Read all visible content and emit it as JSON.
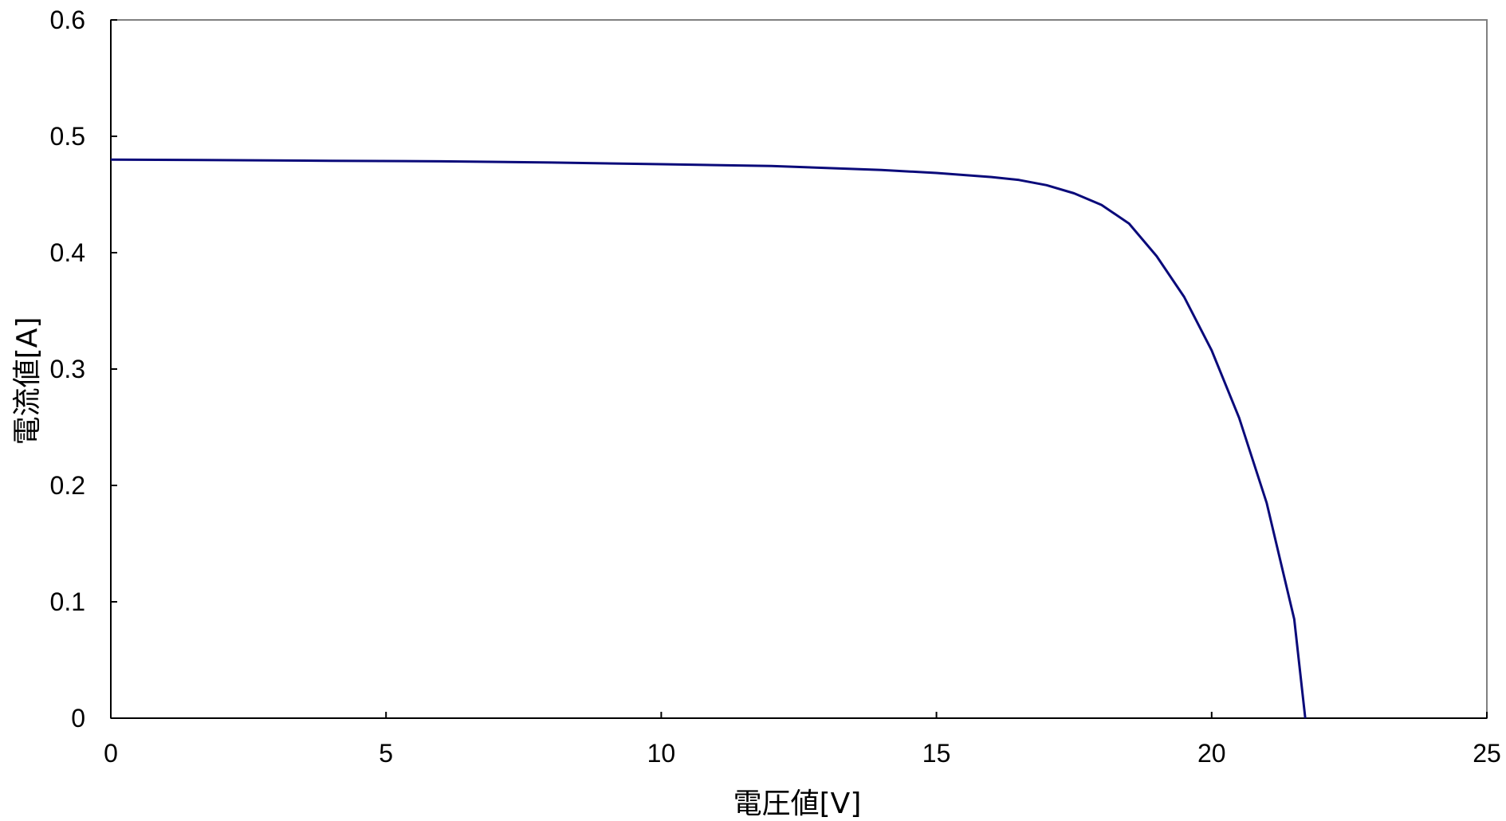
{
  "chart_data": {
    "type": "line",
    "title": "",
    "xlabel": "電圧値[V]",
    "ylabel": "電流値[A]",
    "xlim": [
      0,
      25
    ],
    "ylim": [
      0,
      0.6
    ],
    "x_ticks": [
      "0",
      "5",
      "10",
      "15",
      "20",
      "25"
    ],
    "y_ticks": [
      "0",
      "0.1",
      "0.2",
      "0.3",
      "0.4",
      "0.5",
      "0.6"
    ],
    "grid": false,
    "legend": "none",
    "series": [
      {
        "color": "#0a0a7a",
        "x": [
          0,
          2,
          4,
          6,
          8,
          10,
          12,
          14,
          15,
          16,
          16.5,
          17,
          17.5,
          18,
          18.5,
          19,
          19.5,
          20,
          20.5,
          21,
          21.5,
          21.7
        ],
        "y": [
          0.48,
          0.4795,
          0.479,
          0.4785,
          0.4775,
          0.476,
          0.4745,
          0.471,
          0.4685,
          0.465,
          0.4625,
          0.458,
          0.451,
          0.441,
          0.425,
          0.397,
          0.362,
          0.316,
          0.258,
          0.185,
          0.085,
          0.0
        ]
      }
    ]
  }
}
